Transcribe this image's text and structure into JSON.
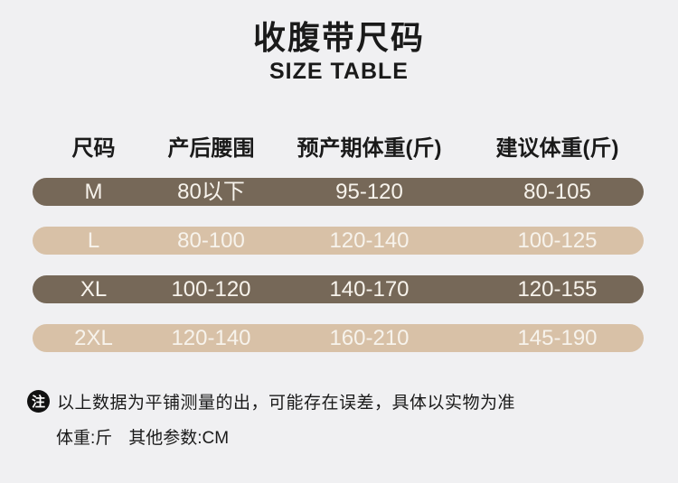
{
  "page": {
    "title": "收腹带尺码",
    "subtitle": "SIZE TABLE"
  },
  "table": {
    "headers": [
      "尺码",
      "产后腰围",
      "预产期体重(斤)",
      "建议体重(斤)"
    ],
    "rows": [
      {
        "size": "M",
        "postpartum_waist": "80以下",
        "due_weight": "95-120",
        "suggested_weight": "80-105"
      },
      {
        "size": "L",
        "postpartum_waist": "80-100",
        "due_weight": "120-140",
        "suggested_weight": "100-125"
      },
      {
        "size": "XL",
        "postpartum_waist": "100-120",
        "due_weight": "140-170",
        "suggested_weight": "120-155"
      },
      {
        "size": "2XL",
        "postpartum_waist": "120-140",
        "due_weight": "160-210",
        "suggested_weight": "145-190"
      }
    ]
  },
  "note": {
    "badge": "注",
    "text": "以上数据为平铺测量的出，可能存在误差，具体以实物为准",
    "weight_unit": "体重:斤",
    "other_params": "其他参数:CM"
  },
  "colors": {
    "background": "#f0f0f2",
    "row_dark": "#766858",
    "row_light": "#d8c1a7",
    "row_text": "#f7f3ec",
    "text_primary": "#1a1a1a",
    "badge_bg": "#111111",
    "badge_text": "#ffffff"
  }
}
